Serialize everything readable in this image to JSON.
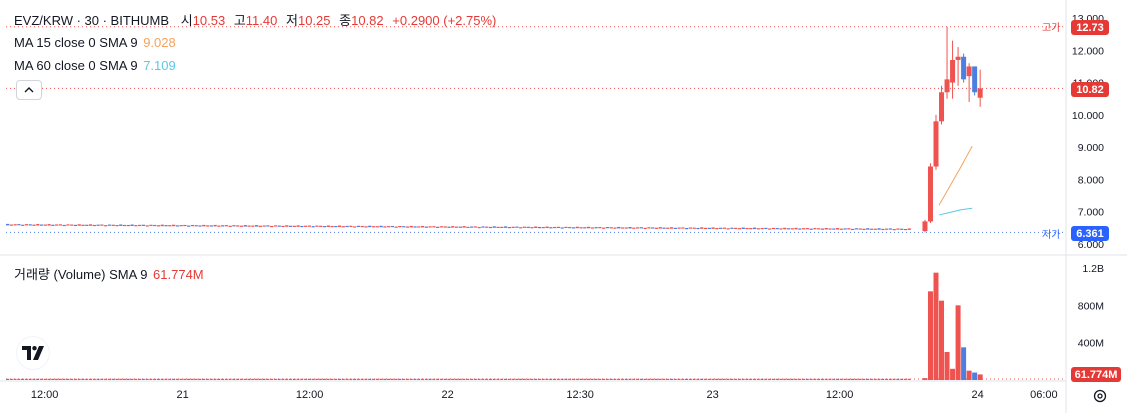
{
  "header": {
    "symbol": "EVZ/KRW · 30 · BITHUMB",
    "open_label": "시",
    "open": "10.53",
    "high_label": "고",
    "high": "11.40",
    "low_label": "저",
    "low": "10.25",
    "close_label": "종",
    "close": "10.82",
    "change": "+0.2900 (+2.75%)"
  },
  "indicators": [
    {
      "label": "MA 15 close 0 SMA 9",
      "value": "9.028",
      "color": "#f7a35c"
    },
    {
      "label": "MA 60 close 0 SMA 9",
      "value": "7.109",
      "color": "#5bc8e4"
    }
  ],
  "volume_legend": {
    "label": "거래량 (Volume) SMA 9",
    "value": "61.774M"
  },
  "price_tags": {
    "high_label": "고가",
    "high": "12.73",
    "last": "10.82",
    "low_label": "저가",
    "low": "6.361"
  },
  "volume_tag": "61.774M",
  "colors": {
    "up": "#ef5350",
    "down": "#4d7fe0",
    "ma15": "#f7a35c",
    "ma60": "#5bc8e4",
    "up_text": "#e53935"
  },
  "icons": {
    "collapse": "chevron-up-icon",
    "logo": "tradingview-logo-icon",
    "settings": "gear-icon"
  },
  "chart_data": {
    "type": "candlestick",
    "price_axis": {
      "ticks": [
        "13.000",
        "12.000",
        "11.000",
        "10.000",
        "9.000",
        "8.000",
        "7.000",
        "6.000"
      ],
      "ylim": [
        6.0,
        13.0
      ]
    },
    "volume_axis": {
      "ticks": [
        "1.2B",
        "800M",
        "400M"
      ],
      "ylim": [
        0,
        1.2
      ]
    },
    "x_ticks": [
      {
        "label": "12:00",
        "t": 3.5
      },
      {
        "label": "21",
        "t": 16
      },
      {
        "label": "12:00",
        "t": 27.5
      },
      {
        "label": "22",
        "t": 40
      },
      {
        "label": "12:30",
        "t": 52
      },
      {
        "label": "23",
        "t": 64
      },
      {
        "label": "12:00",
        "t": 75.5
      },
      {
        "label": "24",
        "t": 88
      },
      {
        "label": "06:00",
        "t": 94
      }
    ],
    "flat_segment": {
      "from": 0,
      "to": 82,
      "level_start": 6.6,
      "level_end": 6.46
    },
    "candles": [
      {
        "t": 83,
        "o": 6.4,
        "h": 6.75,
        "l": 6.36,
        "c": 6.7
      },
      {
        "t": 83.5,
        "o": 6.7,
        "h": 8.5,
        "l": 6.65,
        "c": 8.4
      },
      {
        "t": 84,
        "o": 8.4,
        "h": 10.0,
        "l": 8.3,
        "c": 9.8
      },
      {
        "t": 84.5,
        "o": 9.8,
        "h": 10.9,
        "l": 9.7,
        "c": 10.7
      },
      {
        "t": 85,
        "o": 10.7,
        "h": 12.73,
        "l": 10.5,
        "c": 11.1
      },
      {
        "t": 85.5,
        "o": 11.0,
        "h": 12.3,
        "l": 10.5,
        "c": 11.7
      },
      {
        "t": 86,
        "o": 11.7,
        "h": 12.1,
        "l": 10.9,
        "c": 11.8
      },
      {
        "t": 86.5,
        "o": 11.8,
        "h": 11.9,
        "l": 11.0,
        "c": 11.1
      },
      {
        "t": 87,
        "o": 11.2,
        "h": 11.6,
        "l": 10.4,
        "c": 11.5
      },
      {
        "t": 87.5,
        "o": 11.5,
        "h": 11.5,
        "l": 10.6,
        "c": 10.7
      },
      {
        "t": 88,
        "o": 10.53,
        "h": 11.4,
        "l": 10.25,
        "c": 10.82
      }
    ],
    "ma15": [
      [
        84.5,
        7.2
      ],
      [
        85.5,
        7.8
      ],
      [
        86.5,
        8.4
      ],
      [
        87.5,
        9.028
      ]
    ],
    "ma60": [
      [
        84.5,
        6.9
      ],
      [
        85.5,
        6.98
      ],
      [
        86.5,
        7.06
      ],
      [
        87.5,
        7.109
      ]
    ],
    "volume_spikes": [
      {
        "t": 83,
        "v": 0.02,
        "up": true
      },
      {
        "t": 83.5,
        "v": 0.95,
        "up": true
      },
      {
        "t": 84,
        "v": 1.15,
        "up": true
      },
      {
        "t": 84.5,
        "v": 0.85,
        "up": true
      },
      {
        "t": 85,
        "v": 0.3,
        "up": true
      },
      {
        "t": 85.5,
        "v": 0.12,
        "up": true
      },
      {
        "t": 86,
        "v": 0.8,
        "up": true
      },
      {
        "t": 86.5,
        "v": 0.35,
        "up": false
      },
      {
        "t": 87,
        "v": 0.1,
        "up": true
      },
      {
        "t": 87.5,
        "v": 0.08,
        "up": false
      },
      {
        "t": 88,
        "v": 0.06,
        "up": true
      }
    ]
  }
}
